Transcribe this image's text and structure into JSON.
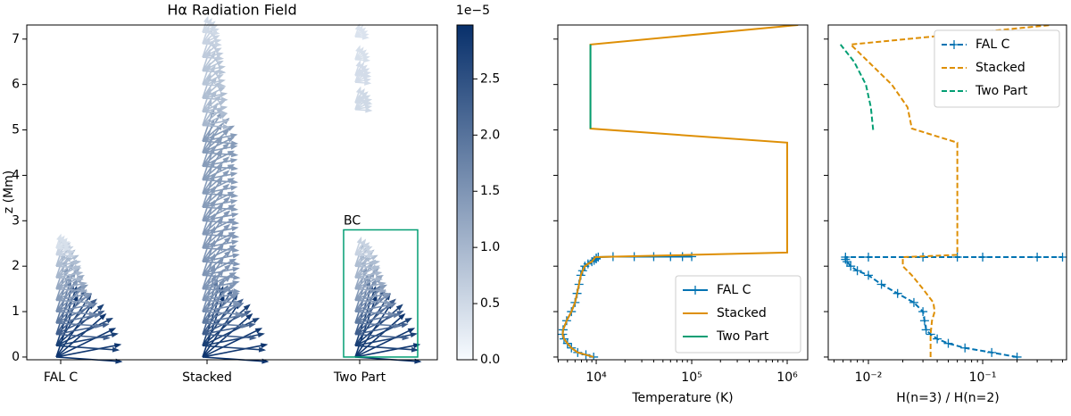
{
  "chart_data": [
    {
      "type": "quiver",
      "title": "Hα Radiation Field",
      "ylabel": "z (Mm)",
      "categories": [
        "FAL C",
        "Stacked",
        "Two Part"
      ],
      "columns": [
        {
          "z": [
            0,
            0.25,
            0.5,
            0.75,
            1.0,
            1.25,
            1.5,
            1.75,
            2.0,
            2.25,
            2.4
          ],
          "values": [
            2.9,
            2.75,
            2.3,
            1.9,
            1.6,
            1.4,
            1.2,
            1.0,
            0.9,
            0.6,
            0.4
          ]
        },
        {
          "z": [
            0,
            0.25,
            0.5,
            0.75,
            1.0,
            1.25,
            1.5,
            1.8,
            2.1,
            2.4,
            2.7,
            3.0,
            3.3,
            3.6,
            3.9,
            4.2,
            4.5,
            4.75,
            5.1,
            5.4,
            5.7,
            6.0,
            6.3,
            6.6,
            6.9,
            7.15
          ],
          "values": [
            2.9,
            2.75,
            2.3,
            1.9,
            1.6,
            1.5,
            1.5,
            1.5,
            1.5,
            1.45,
            1.45,
            1.45,
            1.4,
            1.4,
            1.4,
            1.4,
            1.4,
            1.4,
            1.0,
            0.9,
            0.9,
            0.8,
            0.8,
            0.7,
            0.6,
            0.5
          ]
        },
        {
          "z": [
            0,
            0.25,
            0.5,
            0.75,
            1.0,
            1.25,
            1.5,
            1.75,
            2.0,
            2.25,
            5.45,
            5.6,
            6.05,
            6.2,
            6.55,
            7.05
          ],
          "values": [
            2.9,
            2.75,
            2.3,
            1.9,
            1.6,
            1.4,
            1.2,
            1.0,
            0.9,
            0.6,
            0.5,
            0.5,
            0.45,
            0.45,
            0.4,
            0.35
          ]
        }
      ],
      "annotation": {
        "text": "BC",
        "zlim": [
          0,
          2.8
        ],
        "color": "#029e73"
      },
      "ylim": [
        -0.06,
        7.31
      ],
      "yticks": [
        0,
        1,
        2,
        3,
        4,
        5,
        6,
        7
      ],
      "colorbar": {
        "lim": [
          0,
          2.98
        ],
        "offset_label": "1e−5",
        "cmap": [
          "#f7fbff",
          "#08306b"
        ],
        "ticks": [
          {
            "value": 0,
            "label": "0.0"
          },
          0.5,
          {
            "value": 1,
            "label": "1.0"
          },
          1.5,
          {
            "value": 2,
            "label": "2.0"
          },
          2.5
        ]
      }
    },
    {
      "type": "line",
      "xlabel": "Temperature (K)",
      "log_x": true,
      "legend": "lower right",
      "xlim": [
        3960,
        1640000
      ],
      "xticks": [
        {
          "value": 10000,
          "label": "10⁴"
        },
        {
          "value": 100000,
          "label": "10⁵"
        },
        {
          "value": 1000000,
          "label": "10⁶"
        }
      ],
      "series": [
        {
          "name": "FAL C",
          "color": "#0173b2",
          "marker": "+",
          "z": [
            0,
            0.05,
            0.1,
            0.2,
            0.3,
            0.4,
            0.5,
            0.6,
            0.8,
            1.0,
            1.2,
            1.4,
            1.6,
            1.8,
            1.9,
            2.0,
            2.05,
            2.1,
            2.13,
            2.16,
            2.18,
            2.2,
            2.21,
            2.21,
            2.21,
            2.21,
            2.21,
            2.21
          ],
          "values": [
            9400,
            7800,
            6400,
            5500,
            5000,
            4600,
            4450,
            4500,
            4900,
            5500,
            6000,
            6300,
            6600,
            6900,
            7200,
            7600,
            8200,
            9000,
            9500,
            10000,
            10000,
            10500,
            15000,
            25000,
            40000,
            60000,
            80000,
            100000
          ]
        },
        {
          "name": "Stacked",
          "color": "#de8f05",
          "z": [
            0,
            0.05,
            0.1,
            0.2,
            0.3,
            0.4,
            0.5,
            0.6,
            0.8,
            1.0,
            1.2,
            1.4,
            1.6,
            1.8,
            1.9,
            2.0,
            2.05,
            2.1,
            2.2,
            2.3,
            4.72,
            5.03,
            6.88,
            7.31
          ],
          "values": [
            9400,
            7800,
            6400,
            5500,
            5000,
            4600,
            4450,
            4500,
            4900,
            5500,
            6000,
            6300,
            6600,
            6900,
            7200,
            7600,
            8200,
            9000,
            9800,
            1000000,
            1000000,
            8700,
            8700,
            1300000
          ]
        },
        {
          "name": "Two Part",
          "color": "#029e73",
          "z": [
            5.03,
            6.88
          ],
          "values": [
            8700,
            8700
          ]
        }
      ]
    },
    {
      "type": "line",
      "xlabel": "H(n=3) / H(n=2)",
      "log_x": true,
      "legend": "upper right",
      "dashed": true,
      "xlim": [
        0.00445,
        0.542
      ],
      "xticks": [
        {
          "value": 0.01,
          "label": "10⁻²"
        },
        {
          "value": 0.1,
          "label": "10⁻¹"
        }
      ],
      "series": [
        {
          "name": "FAL C",
          "color": "#0173b2",
          "marker": "+",
          "z": [
            0,
            0.1,
            0.2,
            0.3,
            0.4,
            0.5,
            0.6,
            0.8,
            1.0,
            1.2,
            1.4,
            1.6,
            1.8,
            1.9,
            2.0,
            2.1,
            2.15,
            2.2,
            2.2,
            2.2,
            2.2,
            2.2,
            2.2,
            2.2
          ],
          "values": [
            0.2,
            0.12,
            0.07,
            0.05,
            0.04,
            0.035,
            0.032,
            0.031,
            0.03,
            0.025,
            0.018,
            0.013,
            0.01,
            0.008,
            0.007,
            0.0065,
            0.0063,
            0.0063,
            0.01,
            0.03,
            0.06,
            0.1,
            0.3,
            0.5
          ]
        },
        {
          "name": "Stacked",
          "color": "#de8f05",
          "z": [
            0,
            0.5,
            0.8,
            1.0,
            1.2,
            1.5,
            1.8,
            2.0,
            2.1,
            2.2,
            2.25,
            4.72,
            5.03,
            5.5,
            6.0,
            6.5,
            6.88,
            7.31
          ],
          "values": [
            0.035,
            0.035,
            0.036,
            0.038,
            0.037,
            0.03,
            0.024,
            0.02,
            0.02,
            0.02,
            0.06,
            0.06,
            0.024,
            0.022,
            0.016,
            0.01,
            0.007,
            0.4
          ]
        },
        {
          "name": "Two Part",
          "color": "#029e73",
          "z": [
            5.0,
            5.5,
            6.0,
            6.5,
            6.88
          ],
          "values": [
            0.011,
            0.0105,
            0.0095,
            0.0075,
            0.0057
          ]
        }
      ]
    }
  ]
}
